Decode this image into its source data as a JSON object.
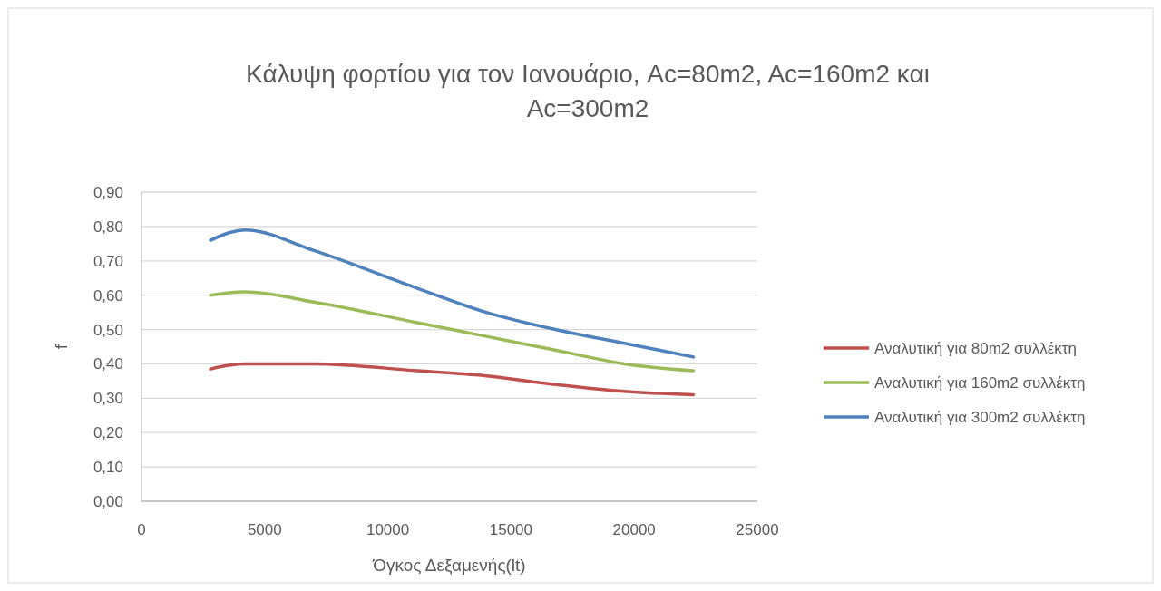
{
  "chart_data": {
    "type": "line",
    "title": "Κάλυψη φορτίου για τον Ιανουάριο, Ac=80m2, Ac=160m2 και Ac=300m2",
    "xlabel": "Όγκος Δεξαμενής(lt)",
    "ylabel": "f",
    "x": [
      2800,
      4200,
      7000,
      11200,
      14000,
      16800,
      19600,
      22400
    ],
    "series": [
      {
        "name": "Αναλυτική για 80m2 συλλέκτη",
        "color": "#c0504d",
        "values": [
          0.385,
          0.4,
          0.4,
          0.38,
          0.365,
          0.34,
          0.32,
          0.31
        ]
      },
      {
        "name": "Αναλυτική για 160m2 συλλέκτη",
        "color": "#9bbb59",
        "values": [
          0.6,
          0.61,
          0.58,
          0.52,
          0.48,
          0.44,
          0.4,
          0.38
        ]
      },
      {
        "name": "Αναλυτική για 300m2 συλλέκτη",
        "color": "#4f81bd",
        "values": [
          0.76,
          0.79,
          0.73,
          0.62,
          0.55,
          0.5,
          0.46,
          0.42
        ]
      }
    ],
    "xlim": [
      0,
      25000
    ],
    "xticks": [
      0,
      5000,
      10000,
      15000,
      20000,
      25000
    ],
    "ylim": [
      0,
      0.9
    ],
    "yticks": [
      {
        "value": 0,
        "label": "0,00"
      },
      {
        "value": 0.1,
        "label": "0,10"
      },
      {
        "value": 0.2,
        "label": "0,20"
      },
      {
        "value": 0.3,
        "label": "0,30"
      },
      {
        "value": 0.4,
        "label": "0,40"
      },
      {
        "value": 0.5,
        "label": "0,50"
      },
      {
        "value": 0.6,
        "label": "0,60"
      },
      {
        "value": 0.7,
        "label": "0,70"
      },
      {
        "value": 0.8,
        "label": "0,80"
      },
      {
        "value": 0.9,
        "label": "0,90"
      }
    ],
    "grid": "y",
    "legend": "right",
    "marker": "none",
    "line_style": "solid"
  }
}
